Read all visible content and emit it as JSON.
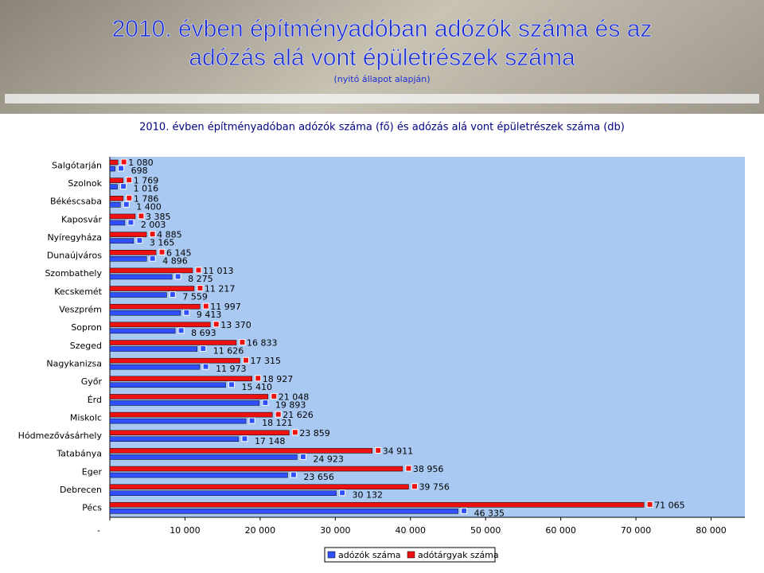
{
  "slide": {
    "title_lines": [
      "2010. évben építményadóban adózók száma és az",
      "adózás alá vont épületrészek száma"
    ],
    "subtitle": "(nyitó állapot alapján)"
  },
  "chart_data": {
    "type": "hbar",
    "title": "2010. évben építményadóban adózók száma (fő) és adózás alá vont épületrészek száma (db)",
    "categories": [
      "Salgótarján",
      "Szolnok",
      "Békéscsaba",
      "Kaposvár",
      "Nyíregyháza",
      "Dunaújváros",
      "Szombathely",
      "Kecskemét",
      "Veszprém",
      "Sopron",
      "Szeged",
      "Nagykanizsa",
      "Győr",
      "Érd",
      "Miskolc",
      "Hódmezővásárhely",
      "Tatabánya",
      "Eger",
      "Debrecen",
      "Pécs"
    ],
    "series": [
      {
        "name": "adózók száma",
        "color": "#3050ff",
        "values": [
          698,
          1016,
          1400,
          2003,
          3165,
          4896,
          8275,
          7559,
          9413,
          8693,
          11626,
          11973,
          15410,
          19893,
          18121,
          17148,
          24923,
          23656,
          30132,
          46335
        ],
        "value_labels": [
          "698",
          "1 016",
          "1 400",
          "2 003",
          "3 165",
          "4 896",
          "8 275",
          "7 559",
          "9 413",
          "8 693",
          "11 626",
          "11 973",
          "15 410",
          "19 893",
          "18 121",
          "17 148",
          "24 923",
          "23 656",
          "30 132",
          "46 335"
        ]
      },
      {
        "name": "adótárgyak száma",
        "color": "#ee1111",
        "values": [
          1080,
          1769,
          1786,
          3385,
          4885,
          6145,
          11013,
          11217,
          11997,
          13370,
          16833,
          17315,
          18927,
          21048,
          21626,
          23859,
          34911,
          38956,
          39756,
          71065
        ],
        "value_labels": [
          "1 080",
          "1 769",
          "1 786",
          "3 385",
          "4 885",
          "6 145",
          "11 013",
          "11 217",
          "11 997",
          "13 370",
          "16 833",
          "17 315",
          "18 927",
          "21 048",
          "21 626",
          "23 859",
          "34 911",
          "38 956",
          "39 756",
          "71 065"
        ]
      }
    ],
    "xlim": [
      0,
      84500
    ],
    "xticks": [
      {
        "value": 0,
        "label": "-"
      },
      {
        "value": 10000,
        "label": "10 000"
      },
      {
        "value": 20000,
        "label": "20 000"
      },
      {
        "value": 30000,
        "label": "30 000"
      },
      {
        "value": 40000,
        "label": "40 000"
      },
      {
        "value": 50000,
        "label": "50 000"
      },
      {
        "value": 60000,
        "label": "60 000"
      },
      {
        "value": 70000,
        "label": "70 000"
      },
      {
        "value": 80000,
        "label": "80 000"
      }
    ],
    "legend": "bottom"
  }
}
